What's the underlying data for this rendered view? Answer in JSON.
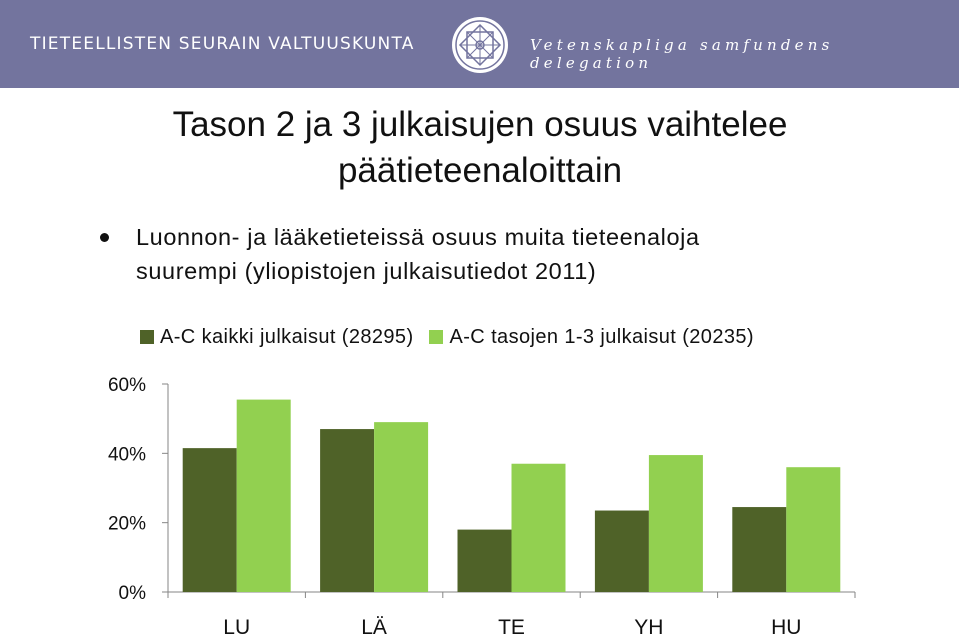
{
  "header": {
    "org_fi": "TIETEELLISTEN SEURAIN VALTUUSKUNTA",
    "org_sv": "Vetenskapliga samfundens delegation",
    "logo_icon": "seal-logo-icon",
    "background": "#73749e"
  },
  "slide": {
    "title_line1": "Tason 2 ja 3 julkaisujen osuus vaihtelee",
    "title_line2": "päätieteenaloittain",
    "bullet_line1": "Luonnon- ja lääketieteissä osuus muita tieteenaloja",
    "bullet_line2": "suurempi (yliopistojen julkaisutiedot 2011)"
  },
  "chart_data": {
    "type": "bar",
    "categories": [
      "LU",
      "LÄ",
      "TE",
      "YH",
      "HU"
    ],
    "series": [
      {
        "name": "A-C kaikki julkaisut (28295)",
        "values": [
          41.5,
          47,
          18,
          23.5,
          24.5
        ],
        "color": "#4f6228"
      },
      {
        "name": "A-C tasojen 1-3 julkaisut (20235)",
        "values": [
          55.5,
          49,
          37,
          39.5,
          36
        ],
        "color": "#92d050"
      }
    ],
    "y_ticks": [
      "0%",
      "20%",
      "40%",
      "60%"
    ],
    "ylim": [
      0,
      60
    ],
    "legend_position": "top",
    "grid": false
  }
}
